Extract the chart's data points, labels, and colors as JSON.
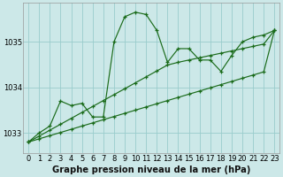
{
  "title": "Graphe pression niveau de la mer (hPa)",
  "background_color": "#cce8e8",
  "grid_color": "#99cccc",
  "line_color": "#1a6b1a",
  "x_hours": [
    0,
    1,
    2,
    3,
    4,
    5,
    6,
    7,
    8,
    9,
    10,
    11,
    12,
    13,
    14,
    15,
    16,
    17,
    18,
    19,
    20,
    21,
    22,
    23
  ],
  "pressure_main": [
    1032.8,
    1033.0,
    1033.15,
    1033.7,
    1033.6,
    1033.65,
    1033.35,
    1033.35,
    1035.0,
    1035.55,
    1035.65,
    1035.6,
    1035.25,
    1034.55,
    1034.85,
    1034.85,
    1034.6,
    1034.6,
    1034.35,
    1034.7,
    1035.0,
    1035.1,
    1035.15,
    1035.25
  ],
  "pressure_line2": [
    1032.8,
    1032.87,
    1032.94,
    1033.01,
    1033.08,
    1033.15,
    1033.22,
    1033.29,
    1033.36,
    1033.43,
    1033.5,
    1033.57,
    1033.64,
    1033.71,
    1033.78,
    1033.85,
    1033.92,
    1033.99,
    1034.06,
    1034.13,
    1034.2,
    1034.27,
    1034.34,
    1035.25
  ],
  "pressure_line3": [
    1032.8,
    1032.93,
    1033.06,
    1033.19,
    1033.32,
    1033.45,
    1033.58,
    1033.71,
    1033.84,
    1033.97,
    1034.1,
    1034.23,
    1034.36,
    1034.49,
    1034.55,
    1034.6,
    1034.65,
    1034.7,
    1034.75,
    1034.8,
    1034.85,
    1034.9,
    1034.95,
    1035.25
  ],
  "ylim": [
    1032.55,
    1035.85
  ],
  "yticks": [
    1033,
    1034,
    1035
  ],
  "tick_fontsize": 6.0,
  "title_fontsize": 7.2,
  "marker_size": 2.5,
  "linewidth": 0.85
}
